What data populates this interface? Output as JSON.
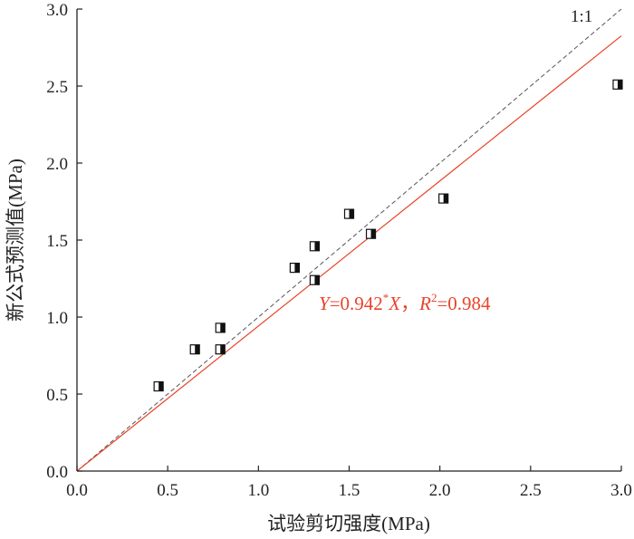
{
  "chart_data": {
    "type": "scatter",
    "xlabel": "试验剪切强度(MPa)",
    "ylabel": "新公式预测值(MPa)",
    "xlim": [
      0.0,
      3.0
    ],
    "ylim": [
      0.0,
      3.0
    ],
    "xticks": [
      "0.0",
      "0.5",
      "1.0",
      "1.5",
      "2.0",
      "2.5",
      "3.0"
    ],
    "yticks": [
      "0.0",
      "0.5",
      "1.0",
      "1.5",
      "2.0",
      "2.5",
      "3.0"
    ],
    "grid": false,
    "points": [
      {
        "x": 0.45,
        "y": 0.55
      },
      {
        "x": 0.65,
        "y": 0.79
      },
      {
        "x": 0.79,
        "y": 0.93
      },
      {
        "x": 0.79,
        "y": 0.79
      },
      {
        "x": 1.2,
        "y": 1.32
      },
      {
        "x": 1.31,
        "y": 1.46
      },
      {
        "x": 1.31,
        "y": 1.24
      },
      {
        "x": 1.5,
        "y": 1.67
      },
      {
        "x": 1.62,
        "y": 1.54
      },
      {
        "x": 2.02,
        "y": 1.77
      },
      {
        "x": 2.98,
        "y": 2.51
      }
    ],
    "reference_line": {
      "label": "1:1",
      "slope": 1.0,
      "style": "dashed",
      "color": "#555555"
    },
    "fit_line": {
      "slope": 0.942,
      "color": "#e8432a",
      "style": "solid"
    },
    "annotation": {
      "y_var": "Y",
      "eq": "=0.942",
      "sup": "*",
      "x_var": "X",
      "sep": "，",
      "r_var": "R",
      "r_sup": "2",
      "r_val": "=0.984",
      "color": "#e8432a"
    }
  }
}
